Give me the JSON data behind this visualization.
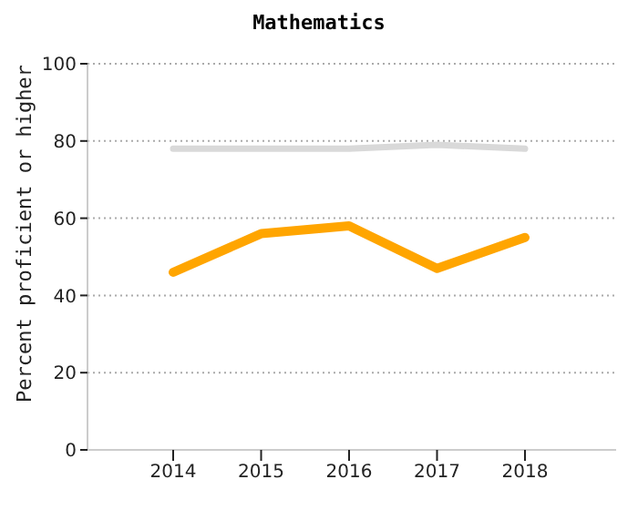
{
  "chart_data": {
    "type": "line",
    "title": "Mathematics",
    "ylabel": "Percent proficient or higher",
    "categories": [
      "2014",
      "2015",
      "2016",
      "2017",
      "2018"
    ],
    "series": [
      {
        "color": "#d9d9d9",
        "values": [
          78,
          78,
          78,
          79,
          78
        ]
      },
      {
        "color": "#ffa500",
        "values": [
          46,
          56,
          58,
          47,
          55
        ]
      }
    ],
    "ylim": [
      0,
      100
    ],
    "yticks": [
      0,
      20,
      40,
      60,
      80,
      100
    ],
    "grid": "y",
    "marker": "none",
    "line_style": "solid",
    "legend": false
  }
}
